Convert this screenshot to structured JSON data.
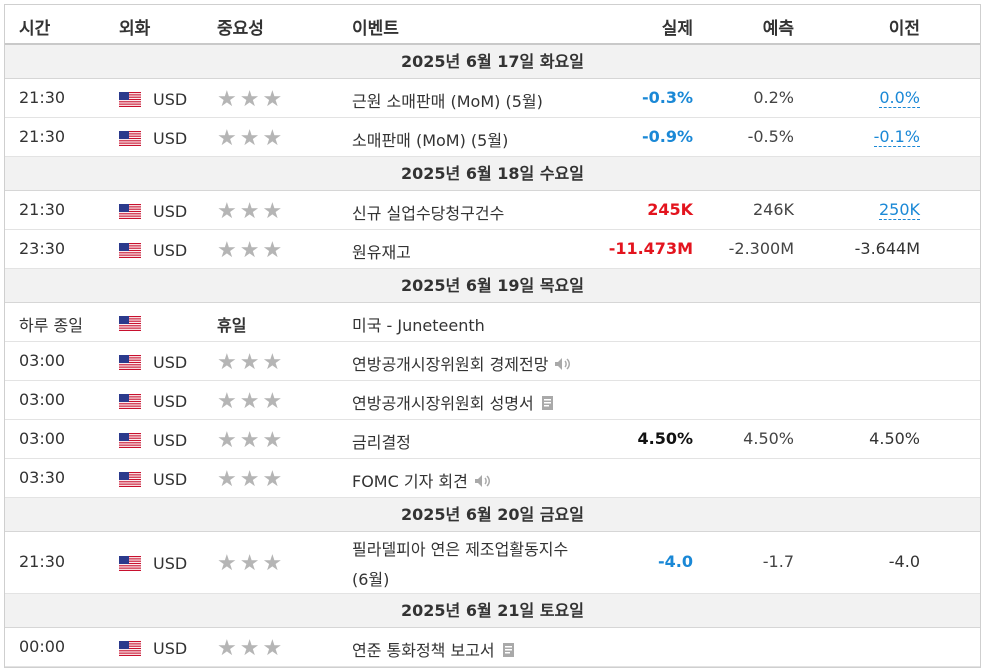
{
  "header": {
    "time": "시간",
    "currency": "외화",
    "importance": "중요성",
    "event": "이벤트",
    "actual": "실제",
    "forecast": "예측",
    "previous": "이전"
  },
  "colors": {
    "positive_blue": "#1a88d6",
    "negative_red": "#e3141e",
    "star_gray": "#b5b5b5",
    "date_bar": "#f2f2f2"
  },
  "sections": [
    {
      "date": "2025년 6월 17일 화요일",
      "rows": [
        {
          "time": "21:30",
          "currency": "USD",
          "stars": 3,
          "event": "근원 소매판매 (MoM) (5월)",
          "actual": "-0.3%",
          "actual_color": "blue",
          "forecast": "0.2%",
          "previous": "0.0%",
          "previous_link": true
        },
        {
          "time": "21:30",
          "currency": "USD",
          "stars": 3,
          "event": "소매판매 (MoM) (5월)",
          "actual": "-0.9%",
          "actual_color": "blue",
          "forecast": "-0.5%",
          "previous": "-0.1%",
          "previous_link": true
        }
      ]
    },
    {
      "date": "2025년 6월 18일 수요일",
      "rows": [
        {
          "time": "21:30",
          "currency": "USD",
          "stars": 3,
          "event": "신규 실업수당청구건수",
          "actual": "245K",
          "actual_color": "red",
          "forecast": "246K",
          "previous": "250K",
          "previous_link": true
        },
        {
          "time": "23:30",
          "currency": "USD",
          "stars": 3,
          "event": "원유재고",
          "actual": "-11.473M",
          "actual_color": "red",
          "forecast": "-2.300M",
          "previous": "-3.644M",
          "previous_link": false
        }
      ]
    },
    {
      "date": "2025년 6월 19일 목요일",
      "rows": [
        {
          "time": "하루 종일",
          "currency": "",
          "holiday": "휴일",
          "event": "미국 - Juneteenth"
        },
        {
          "time": "03:00",
          "currency": "USD",
          "stars": 3,
          "event": "연방공개시장위원회 경제전망",
          "icon": "speaker-icon"
        },
        {
          "time": "03:00",
          "currency": "USD",
          "stars": 3,
          "event": "연방공개시장위원회 성명서",
          "icon": "document-icon"
        },
        {
          "time": "03:00",
          "currency": "USD",
          "stars": 3,
          "event": "금리결정",
          "actual": "4.50%",
          "actual_color": "black",
          "forecast": "4.50%",
          "previous": "4.50%",
          "previous_link": false
        },
        {
          "time": "03:30",
          "currency": "USD",
          "stars": 3,
          "event": "FOMC 기자 회견",
          "icon": "speaker-icon"
        }
      ]
    },
    {
      "date": "2025년 6월 20일 금요일",
      "rows": [
        {
          "time": "21:30",
          "currency": "USD",
          "stars": 3,
          "event": "필라델피아 연은 제조업활동지수",
          "event_line2": "(6월)",
          "actual": "-4.0",
          "actual_color": "blue",
          "forecast": "-1.7",
          "previous": "-4.0",
          "previous_link": false
        }
      ]
    },
    {
      "date": "2025년 6월 21일 토요일",
      "rows": [
        {
          "time": "00:00",
          "currency": "USD",
          "stars": 3,
          "event": "연준 통화정책 보고서",
          "icon": "document-icon"
        }
      ]
    }
  ]
}
